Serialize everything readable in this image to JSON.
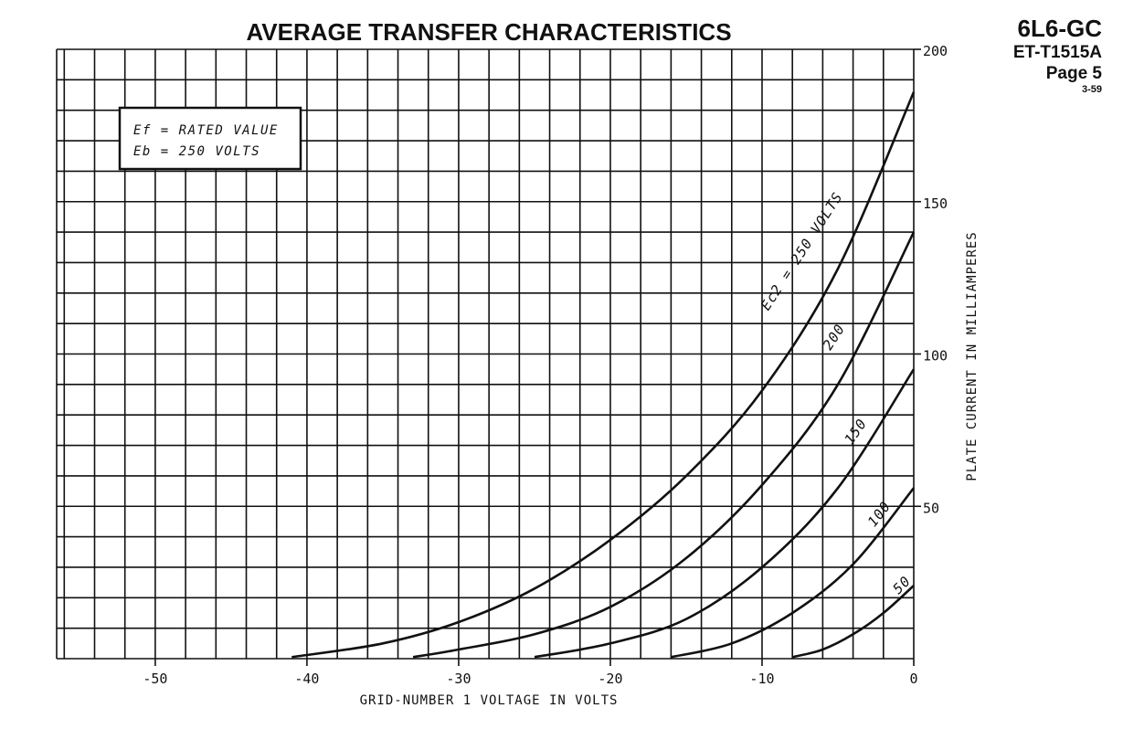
{
  "header": {
    "tube": "6L6-GC",
    "doc_id": "ET-T1515A",
    "page": "Page 5",
    "date": "3-59"
  },
  "legend": {
    "line1": "Ef = RATED VALUE",
    "line2": "Eb = 250 VOLTS"
  },
  "chart_data": {
    "type": "line",
    "title": "AVERAGE TRANSFER CHARACTERISTICS",
    "xlabel": "GRID-NUMBER 1 VOLTAGE IN VOLTS",
    "ylabel": "PLATE CURRENT IN MILLIAMPERES",
    "xlim": [
      -56.5,
      0
    ],
    "ylim": [
      0,
      200
    ],
    "grid": true,
    "x_ticks": [
      -50,
      -40,
      -30,
      -20,
      -10,
      0
    ],
    "x_tick_labels": [
      "-50",
      "-40",
      "-30",
      "-20",
      "-10",
      "0"
    ],
    "y_ticks": [
      50,
      100,
      150,
      200
    ],
    "y_tick_labels": [
      "50",
      "100",
      "150",
      "200"
    ],
    "series": [
      {
        "name": "Ec2 = 250 VOLTS",
        "x": [
          -41,
          -35,
          -30,
          -25,
          -20,
          -15,
          -10,
          -5,
          0
        ],
        "y": [
          0.5,
          5,
          12,
          23,
          39,
          60,
          88,
          128,
          186
        ]
      },
      {
        "name": "200",
        "x": [
          -33,
          -30,
          -25,
          -20,
          -15,
          -10,
          -5,
          0
        ],
        "y": [
          0.5,
          3,
          8,
          17,
          33,
          57,
          90,
          140
        ]
      },
      {
        "name": "150",
        "x": [
          -25,
          -20,
          -15,
          -10,
          -5,
          0
        ],
        "y": [
          0.5,
          5,
          13,
          30,
          56,
          95
        ]
      },
      {
        "name": "100",
        "x": [
          -16,
          -12,
          -8,
          -4,
          0
        ],
        "y": [
          0.5,
          5,
          15,
          31,
          56
        ]
      },
      {
        "name": "50",
        "x": [
          -8,
          -6,
          -4,
          -2,
          0
        ],
        "y": [
          0.5,
          3,
          8,
          15,
          24
        ]
      }
    ]
  }
}
